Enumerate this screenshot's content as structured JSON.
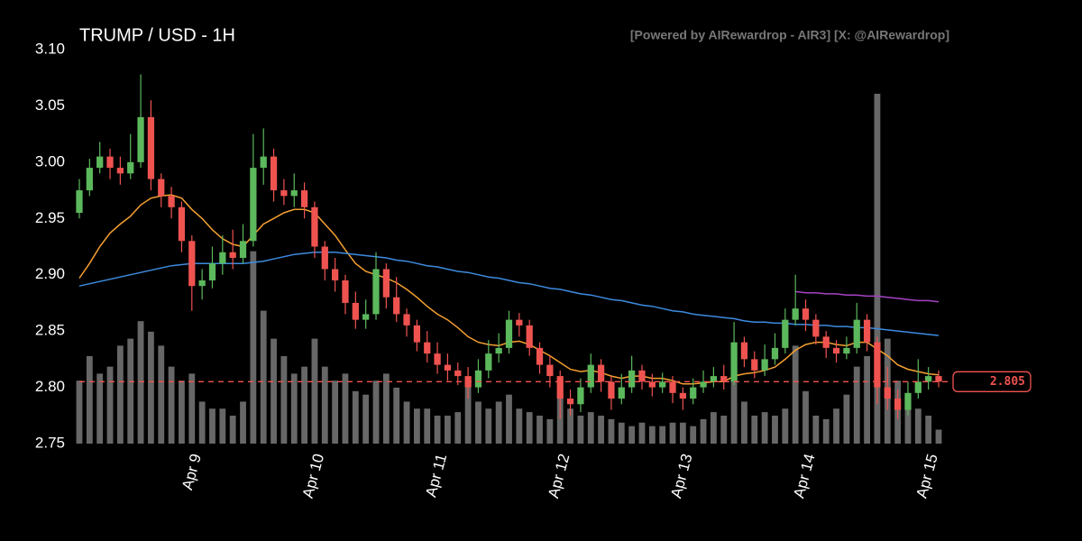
{
  "chart_data": {
    "type": "candlestick",
    "title": "TRUMP / USD - 1H",
    "subtitle": "[Powered by AIRewardrop - AIR3] [X: @AIRewardrop]",
    "up_color": "#5cb85c",
    "down_color": "#ef5350",
    "volume_color": "#8a8a8a",
    "last_price_color": "#ef5350",
    "xlim": [
      0,
      84
    ],
    "xticks": [
      {
        "value": 11,
        "label": "Apr 9"
      },
      {
        "value": 23,
        "label": "Apr 10"
      },
      {
        "value": 35,
        "label": "Apr 11"
      },
      {
        "value": 47,
        "label": "Apr 12"
      },
      {
        "value": 59,
        "label": "Apr 13"
      },
      {
        "value": 71,
        "label": "Apr 14"
      },
      {
        "value": 83,
        "label": "Apr 15"
      }
    ],
    "ylim": [
      2.75,
      3.1
    ],
    "yticks": [
      2.75,
      {
        "value": 2.8,
        "label": "2.80"
      },
      2.85,
      {
        "value": 2.9,
        "label": "2.90"
      },
      2.95,
      {
        "value": 3,
        "label": "3.00"
      },
      3.05,
      {
        "value": 3.1,
        "label": "3.10"
      }
    ],
    "open": [
      2.955,
      2.975,
      2.995,
      3.005,
      2.995,
      2.99,
      3.0,
      3.04,
      2.985,
      2.97,
      2.96,
      2.93,
      2.89,
      2.895,
      2.91,
      2.92,
      2.915,
      2.93,
      2.995,
      3.005,
      2.975,
      2.97,
      2.975,
      2.96,
      2.925,
      2.905,
      2.895,
      2.875,
      2.86,
      2.865,
      2.905,
      2.88,
      2.865,
      2.855,
      2.84,
      2.83,
      2.82,
      2.815,
      2.81,
      2.8,
      2.815,
      2.83,
      2.835,
      2.86,
      2.855,
      2.835,
      2.82,
      2.81,
      2.79,
      2.785,
      2.8,
      2.82,
      2.805,
      2.79,
      2.8,
      2.815,
      2.805,
      2.8,
      2.805,
      2.795,
      2.79,
      2.8,
      2.805,
      2.81,
      2.805,
      2.84,
      2.825,
      2.815,
      2.825,
      2.835,
      2.86,
      2.87,
      2.86,
      2.845,
      2.835,
      2.83,
      2.835,
      2.86,
      2.84,
      2.8,
      2.79,
      2.78,
      2.795,
      2.805,
      2.81
    ],
    "high": [
      2.985,
      3.003,
      3.018,
      3.012,
      3.005,
      3.025,
      3.078,
      3.055,
      2.99,
      2.978,
      2.965,
      2.935,
      2.905,
      2.925,
      2.935,
      2.94,
      2.945,
      3.025,
      3.03,
      3.012,
      2.985,
      2.99,
      2.982,
      2.965,
      2.93,
      2.915,
      2.9,
      2.885,
      2.878,
      2.92,
      2.91,
      2.898,
      2.87,
      2.86,
      2.85,
      2.84,
      2.83,
      2.822,
      2.818,
      2.825,
      2.842,
      2.848,
      2.868,
      2.866,
      2.86,
      2.84,
      2.828,
      2.815,
      2.798,
      2.808,
      2.83,
      2.825,
      2.81,
      2.812,
      2.828,
      2.82,
      2.812,
      2.813,
      2.81,
      2.8,
      2.808,
      2.815,
      2.818,
      2.82,
      2.858,
      2.845,
      2.832,
      2.838,
      2.848,
      2.87,
      2.9,
      2.878,
      2.865,
      2.85,
      2.842,
      2.845,
      2.875,
      2.865,
      2.845,
      2.818,
      2.798,
      2.805,
      2.825,
      2.818,
      2.815
    ],
    "low": [
      2.95,
      2.97,
      2.99,
      2.985,
      2.98,
      2.985,
      2.995,
      2.975,
      2.96,
      2.95,
      2.92,
      2.868,
      2.878,
      2.888,
      2.9,
      2.905,
      2.91,
      2.925,
      2.98,
      2.965,
      2.962,
      2.96,
      2.95,
      2.915,
      2.895,
      2.885,
      2.865,
      2.852,
      2.852,
      2.86,
      2.87,
      2.858,
      2.845,
      2.832,
      2.822,
      2.812,
      2.806,
      2.802,
      2.79,
      2.795,
      2.808,
      2.822,
      2.83,
      2.845,
      2.828,
      2.812,
      2.8,
      2.772,
      2.775,
      2.778,
      2.795,
      2.796,
      2.78,
      2.785,
      2.795,
      2.798,
      2.792,
      2.795,
      2.786,
      2.78,
      2.785,
      2.795,
      2.8,
      2.798,
      2.802,
      2.818,
      2.808,
      2.81,
      2.82,
      2.83,
      2.855,
      2.85,
      2.838,
      2.826,
      2.822,
      2.825,
      2.83,
      2.832,
      2.785,
      2.78,
      2.772,
      2.775,
      2.79,
      2.798,
      2.8
    ],
    "close": [
      2.975,
      2.995,
      3.005,
      2.995,
      2.99,
      3.0,
      3.04,
      2.985,
      2.97,
      2.96,
      2.93,
      2.89,
      2.895,
      2.91,
      2.92,
      2.915,
      2.93,
      2.995,
      3.005,
      2.975,
      2.97,
      2.975,
      2.96,
      2.925,
      2.905,
      2.895,
      2.875,
      2.86,
      2.865,
      2.905,
      2.88,
      2.865,
      2.855,
      2.84,
      2.83,
      2.82,
      2.815,
      2.81,
      2.8,
      2.815,
      2.83,
      2.835,
      2.86,
      2.855,
      2.835,
      2.82,
      2.81,
      2.79,
      2.785,
      2.8,
      2.82,
      2.805,
      2.79,
      2.8,
      2.815,
      2.805,
      2.8,
      2.805,
      2.795,
      2.79,
      2.8,
      2.805,
      2.81,
      2.805,
      2.84,
      2.825,
      2.815,
      2.825,
      2.835,
      2.86,
      2.87,
      2.86,
      2.845,
      2.835,
      2.83,
      2.835,
      2.86,
      2.84,
      2.8,
      2.79,
      2.78,
      2.795,
      2.805,
      2.81,
      2.805
    ],
    "volume": [
      18,
      25,
      20,
      22,
      28,
      30,
      35,
      32,
      28,
      22,
      18,
      20,
      12,
      10,
      10,
      8,
      12,
      55,
      38,
      30,
      25,
      20,
      22,
      30,
      22,
      18,
      20,
      15,
      14,
      18,
      20,
      16,
      12,
      10,
      10,
      8,
      8,
      9,
      18,
      12,
      10,
      12,
      14,
      10,
      9,
      8,
      7,
      14,
      10,
      8,
      9,
      8,
      7,
      6,
      5,
      6,
      5,
      5,
      6,
      6,
      5,
      7,
      9,
      8,
      20,
      12,
      8,
      9,
      8,
      10,
      28,
      15,
      8,
      7,
      10,
      14,
      22,
      25,
      100,
      30,
      18,
      14,
      10,
      8,
      4
    ],
    "overlays": [
      {
        "color": "#f5a031",
        "values": [
          2.897,
          2.91,
          2.925,
          2.937,
          2.945,
          2.952,
          2.962,
          2.968,
          2.97,
          2.971,
          2.968,
          2.958,
          2.95,
          2.94,
          2.932,
          2.927,
          2.925,
          2.935,
          2.945,
          2.95,
          2.955,
          2.958,
          2.958,
          2.955,
          2.945,
          2.935,
          2.922,
          2.91,
          2.903,
          2.9,
          2.897,
          2.893,
          2.887,
          2.88,
          2.872,
          2.865,
          2.86,
          2.853,
          2.845,
          2.84,
          2.838,
          2.837,
          2.84,
          2.841,
          2.838,
          2.833,
          2.828,
          2.822,
          2.816,
          2.814,
          2.815,
          2.813,
          2.81,
          2.808,
          2.81,
          2.81,
          2.808,
          2.808,
          2.806,
          2.803,
          2.803,
          2.804,
          2.805,
          2.805,
          2.81,
          2.812,
          2.813,
          2.815,
          2.818,
          2.825,
          2.833,
          2.838,
          2.84,
          2.84,
          2.838,
          2.837,
          2.84,
          2.84,
          2.834,
          2.828,
          2.82,
          2.816,
          2.814,
          2.812,
          2.811
        ]
      },
      {
        "color": "#3d8be0",
        "values": [
          2.89,
          2.892,
          2.894,
          2.896,
          2.898,
          2.9,
          2.902,
          2.904,
          2.906,
          2.908,
          2.909,
          2.91,
          2.91,
          2.91,
          2.91,
          2.91,
          2.91,
          2.911,
          2.912,
          2.914,
          2.916,
          2.918,
          2.919,
          2.92,
          2.92,
          2.92,
          2.919,
          2.918,
          2.917,
          2.916,
          2.915,
          2.913,
          2.912,
          2.91,
          2.908,
          2.907,
          2.905,
          2.903,
          2.902,
          2.9,
          2.898,
          2.897,
          2.895,
          2.893,
          2.892,
          2.89,
          2.888,
          2.887,
          2.885,
          2.883,
          2.882,
          2.88,
          2.878,
          2.877,
          2.875,
          2.873,
          2.872,
          2.87,
          2.868,
          2.867,
          2.865,
          2.864,
          2.863,
          2.862,
          2.861,
          2.859,
          2.858,
          2.858,
          2.857,
          2.857,
          2.856,
          2.856,
          2.855,
          2.855,
          2.854,
          2.854,
          2.853,
          2.853,
          2.852,
          2.851,
          2.85,
          2.849,
          2.848,
          2.847,
          2.846
        ]
      },
      {
        "color": "#a542c4",
        "values": [
          null,
          null,
          null,
          null,
          null,
          null,
          null,
          null,
          null,
          null,
          null,
          null,
          null,
          null,
          null,
          null,
          null,
          null,
          null,
          null,
          null,
          null,
          null,
          null,
          null,
          null,
          null,
          null,
          null,
          null,
          null,
          null,
          null,
          null,
          null,
          null,
          null,
          null,
          null,
          null,
          null,
          null,
          null,
          null,
          null,
          null,
          null,
          null,
          null,
          null,
          null,
          null,
          null,
          null,
          null,
          null,
          null,
          null,
          null,
          null,
          null,
          null,
          null,
          null,
          null,
          null,
          null,
          null,
          null,
          null,
          2.885,
          2.884,
          2.884,
          2.883,
          2.883,
          2.882,
          2.882,
          2.881,
          2.881,
          2.88,
          2.879,
          2.878,
          2.877,
          2.877,
          2.876
        ]
      }
    ]
  }
}
